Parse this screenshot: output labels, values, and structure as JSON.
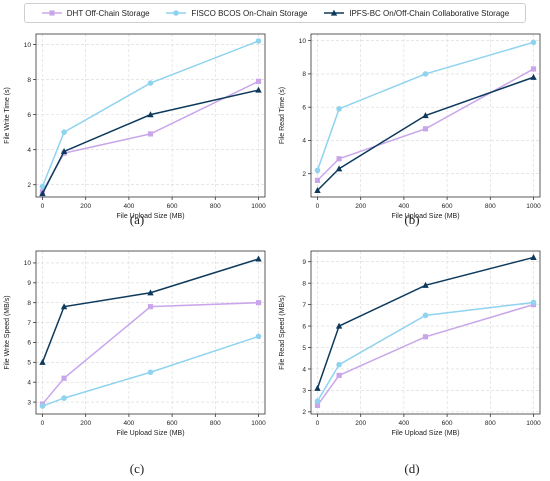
{
  "legend": [
    {
      "name": "DHT Off-Chain Storage",
      "color": "#c9a6ea",
      "marker": "square"
    },
    {
      "name": "FISCO BCOS On-Chain Storage",
      "color": "#8fd3ef",
      "marker": "circle"
    },
    {
      "name": "IPFS-BC On/Off-Chain Collaborative Storage",
      "color": "#0d3a5c",
      "marker": "triangle"
    }
  ],
  "chart_data": [
    {
      "type": "line",
      "caption": "(a)",
      "xlabel": "File Upload Size (MB)",
      "ylabel": "File Write Time (s)",
      "x": [
        0,
        100,
        500,
        1000
      ],
      "xlim": [
        -30,
        1030
      ],
      "ylim": [
        1.3,
        10.6
      ],
      "xticks": [
        0,
        200,
        400,
        600,
        800,
        1000
      ],
      "yticks": [
        2,
        4,
        6,
        8,
        10
      ],
      "grid": true,
      "series": [
        {
          "name": "DHT Off-Chain Storage",
          "values": [
            1.6,
            3.8,
            4.9,
            7.9
          ]
        },
        {
          "name": "FISCO BCOS On-Chain Storage",
          "values": [
            1.9,
            5.0,
            7.8,
            10.2
          ]
        },
        {
          "name": "IPFS-BC On/Off-Chain Collaborative Storage",
          "values": [
            1.5,
            3.9,
            6.0,
            7.4
          ]
        }
      ]
    },
    {
      "type": "line",
      "caption": "(b)",
      "xlabel": "File Upload Size (MB)",
      "ylabel": "File Read Time (s)",
      "x": [
        0,
        100,
        500,
        1000
      ],
      "xlim": [
        -30,
        1030
      ],
      "ylim": [
        0.6,
        10.4
      ],
      "xticks": [
        0,
        200,
        400,
        600,
        800,
        1000
      ],
      "yticks": [
        2,
        4,
        6,
        8,
        10
      ],
      "grid": true,
      "series": [
        {
          "name": "DHT Off-Chain Storage",
          "values": [
            1.6,
            2.9,
            4.7,
            8.3
          ]
        },
        {
          "name": "FISCO BCOS On-Chain Storage",
          "values": [
            2.2,
            5.9,
            8.0,
            9.9
          ]
        },
        {
          "name": "IPFS-BC On/Off-Chain Collaborative Storage",
          "values": [
            1.0,
            2.3,
            5.5,
            7.8
          ]
        }
      ]
    },
    {
      "type": "line",
      "caption": "(c)",
      "xlabel": "File Upload Size (MB)",
      "ylabel": "File Write Speed (MB/s)",
      "x": [
        0,
        100,
        500,
        1000
      ],
      "xlim": [
        -30,
        1030
      ],
      "ylim": [
        2.4,
        10.6
      ],
      "xticks": [
        0,
        200,
        400,
        600,
        800,
        1000
      ],
      "yticks": [
        3,
        4,
        5,
        6,
        7,
        8,
        9,
        10
      ],
      "grid": true,
      "series": [
        {
          "name": "DHT Off-Chain Storage",
          "values": [
            2.9,
            4.2,
            7.8,
            8.0
          ]
        },
        {
          "name": "FISCO BCOS On-Chain Storage",
          "values": [
            2.8,
            3.2,
            4.5,
            6.3
          ]
        },
        {
          "name": "IPFS-BC On/Off-Chain Collaborative Storage",
          "values": [
            5.0,
            7.8,
            8.5,
            10.2
          ]
        }
      ]
    },
    {
      "type": "line",
      "caption": "(d)",
      "xlabel": "File Upload Size (MB)",
      "ylabel": "File Read Speed (MB/s)",
      "x": [
        0,
        100,
        500,
        1000
      ],
      "xlim": [
        -30,
        1030
      ],
      "ylim": [
        1.9,
        9.5
      ],
      "xticks": [
        0,
        200,
        400,
        600,
        800,
        1000
      ],
      "yticks": [
        2,
        3,
        4,
        5,
        6,
        7,
        8,
        9
      ],
      "grid": true,
      "series": [
        {
          "name": "DHT Off-Chain Storage",
          "values": [
            2.3,
            3.7,
            5.5,
            7.0
          ]
        },
        {
          "name": "FISCO BCOS On-Chain Storage",
          "values": [
            2.5,
            4.2,
            6.5,
            7.1
          ]
        },
        {
          "name": "IPFS-BC On/Off-Chain Collaborative Storage",
          "values": [
            3.1,
            6.0,
            7.9,
            9.2
          ]
        }
      ]
    }
  ]
}
